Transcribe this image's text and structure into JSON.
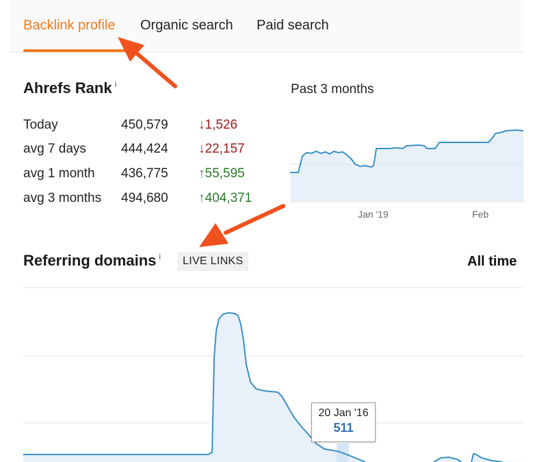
{
  "tabs": [
    {
      "label": "Backlink profile",
      "active": true
    },
    {
      "label": "Organic search",
      "active": false
    },
    {
      "label": "Paid search",
      "active": false
    }
  ],
  "ahrefs_rank": {
    "title": "Ahrefs Rank",
    "info": "i",
    "rows": [
      {
        "label": "Today",
        "value": "450,579",
        "change": "↓1,526",
        "direction": "down"
      },
      {
        "label": "avg 7 days",
        "value": "444,424",
        "change": "↓22,157",
        "direction": "down"
      },
      {
        "label": "avg 1 month",
        "value": "436,775",
        "change": "↑55,595",
        "direction": "up"
      },
      {
        "label": "avg 3 months",
        "value": "494,680",
        "change": "↑404,371",
        "direction": "up"
      }
    ]
  },
  "rank_chart": {
    "label": "Past 3 months",
    "ticks": [
      "Jan '19",
      "Feb"
    ]
  },
  "referring_domains": {
    "title": "Referring domains",
    "info": "i",
    "badge": "LIVE LINKS",
    "range": "All time",
    "tooltip": {
      "date": "20 Jan '16",
      "value": "511"
    }
  },
  "colors": {
    "accent": "#f07a1c",
    "line": "#3b8fc4",
    "area": "#e8f1fa",
    "down": "#a11b1b",
    "up": "#2a7a2a",
    "annotation_arrow": "#f0521f"
  }
}
